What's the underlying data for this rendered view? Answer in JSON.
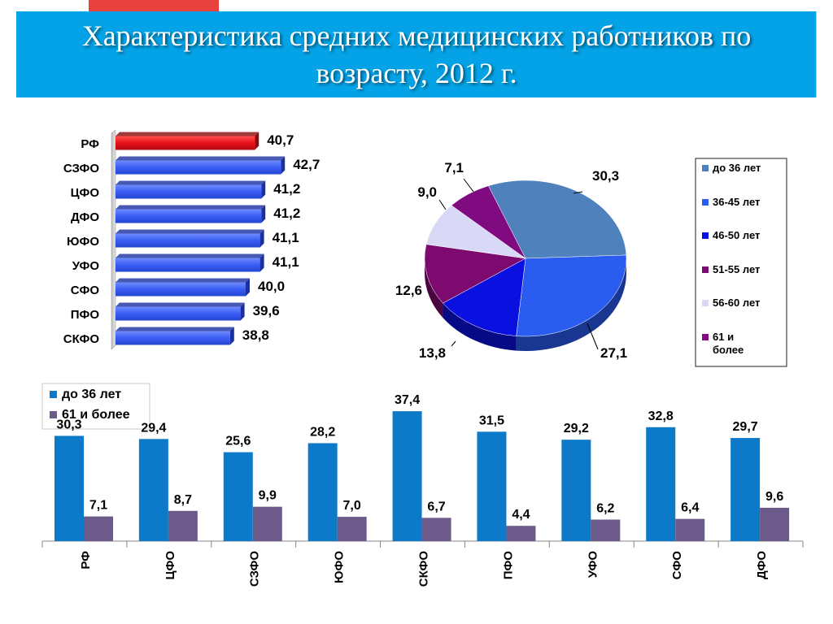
{
  "page": {
    "title": "Характеристика средних медицинских работников по возрасту, 2012 г."
  },
  "colors": {
    "banner": "#04a3e7",
    "rf_bar": "#e8101a",
    "district_bar": "#3a5df5",
    "series_young": "#0d7ac9",
    "series_old": "#6c5a8a"
  },
  "chart_data": [
    {
      "type": "bar",
      "orientation": "horizontal",
      "categories": [
        "РФ",
        "СЗФО",
        "ЦФО",
        "ДФО",
        "ЮФО",
        "УФО",
        "СФО",
        "ПФО",
        "СКФО"
      ],
      "values": [
        40.7,
        42.7,
        41.2,
        41.2,
        41.1,
        41.1,
        40.0,
        39.6,
        38.8
      ],
      "value_labels": [
        "40,7",
        "42,7",
        "41,2",
        "41,2",
        "41,1",
        "41,1",
        "40,0",
        "39,6",
        "38,8"
      ],
      "highlight": "РФ",
      "xlim": [
        30,
        43
      ]
    },
    {
      "type": "pie",
      "labels": [
        "до 36 лет",
        "36-45 лет",
        "46-50 лет",
        "51-55 лет",
        "56-60 лет",
        "61 и более"
      ],
      "values": [
        30.3,
        27.1,
        13.8,
        12.6,
        9.0,
        7.1
      ],
      "value_labels": [
        "30,3",
        "27,1",
        "13,8",
        "12,6",
        "9,0",
        "7,1"
      ],
      "colors": [
        "#4f81bd",
        "#2a5cf0",
        "#0a10e0",
        "#7d0a6e",
        "#d9d9f7",
        "#800a80"
      ],
      "legend_placement": "right"
    },
    {
      "type": "bar",
      "categories": [
        "РФ",
        "ЦФО",
        "СЗФО",
        "ЮФО",
        "СКФО",
        "ПФО",
        "УФО",
        "СФО",
        "ДФО"
      ],
      "series": [
        {
          "name": "до 36 лет",
          "values": [
            30.3,
            29.4,
            25.6,
            28.2,
            37.4,
            31.5,
            29.2,
            32.8,
            29.7
          ],
          "labels": [
            "30,3",
            "29,4",
            "25,6",
            "28,2",
            "37,4",
            "31,5",
            "29,2",
            "32,8",
            "29,7"
          ]
        },
        {
          "name": "61 и более",
          "values": [
            7.1,
            8.7,
            9.9,
            7.0,
            6.7,
            4.4,
            6.2,
            6.4,
            9.6
          ],
          "labels": [
            "7,1",
            "8,7",
            "9,9",
            "7,0",
            "6,7",
            "4,4",
            "6,2",
            "6,4",
            "9,6"
          ]
        }
      ],
      "ylim": [
        0,
        40
      ],
      "legend_placement": "top-left"
    }
  ]
}
